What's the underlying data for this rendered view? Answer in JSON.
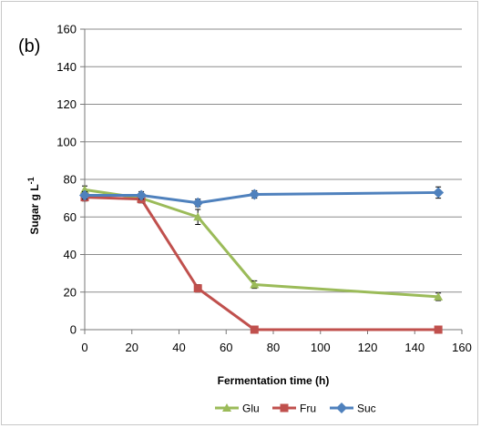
{
  "chart_data": {
    "type": "line",
    "panel_label": "(b)",
    "title": "",
    "xlabel": "Fermentation time (h)",
    "ylabel": "Sugar g L",
    "ylabel_superscript": "-1",
    "xlim": [
      0,
      160
    ],
    "ylim": [
      0,
      160
    ],
    "xticks": [
      0,
      20,
      40,
      60,
      80,
      100,
      120,
      140,
      160
    ],
    "yticks": [
      0,
      20,
      40,
      60,
      80,
      100,
      120,
      140,
      160
    ],
    "grid": "horizontal",
    "legend_position": "bottom",
    "series": [
      {
        "name": "Glu",
        "color": "#9bbb59",
        "marker": "triangle",
        "x": [
          0,
          24,
          48,
          72,
          150
        ],
        "y": [
          74.5,
          70,
          60,
          24,
          17.5
        ],
        "err": [
          2,
          2,
          4,
          2,
          2
        ]
      },
      {
        "name": "Fru",
        "color": "#c0504d",
        "marker": "square",
        "x": [
          0,
          24,
          48,
          72,
          150
        ],
        "y": [
          70.5,
          69.5,
          22,
          0,
          0
        ],
        "err": [
          2,
          2,
          2,
          0,
          0
        ]
      },
      {
        "name": "Suc",
        "color": "#4f81bd",
        "marker": "diamond",
        "x": [
          0,
          24,
          48,
          72,
          150
        ],
        "y": [
          71.5,
          71.5,
          67.5,
          72,
          73
        ],
        "err": [
          2,
          2,
          2,
          2,
          3
        ]
      }
    ]
  }
}
